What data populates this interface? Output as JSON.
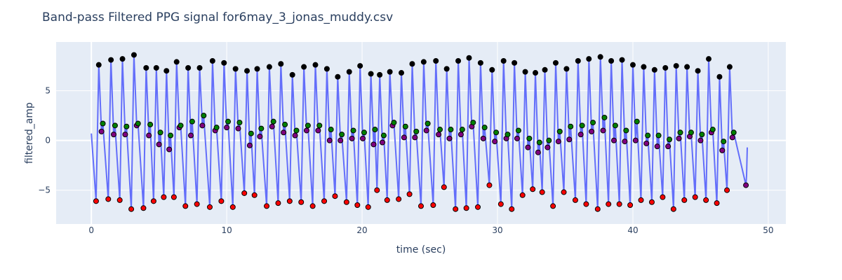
{
  "chart_data": {
    "type": "line",
    "title": "Band-pass Filtered PPG signal for6may_3_jonas_muddy.csv",
    "xlabel": "time (sec)",
    "ylabel": "filtered_amp",
    "xlim": [
      -2.6,
      51.3
    ],
    "ylim": [
      -8.4,
      9.9
    ],
    "x_ticks": [
      0,
      10,
      20,
      30,
      40,
      50
    ],
    "y_ticks": [
      -5,
      0,
      5
    ],
    "y_tick_labels": [
      "−5",
      "0",
      "5"
    ],
    "grid": true,
    "legend": "none",
    "line_color": "#636efa",
    "beats": [
      {
        "trough": [
          0.35,
          -6.1
        ],
        "peak": [
          0.55,
          7.6
        ],
        "notch": [
          0.75,
          0.9
        ],
        "diastolic": [
          0.85,
          1.7
        ]
      },
      {
        "trough": [
          1.25,
          -5.9
        ],
        "peak": [
          1.45,
          8.1
        ],
        "notch": [
          1.65,
          0.6
        ],
        "diastolic": [
          1.75,
          1.5
        ]
      },
      {
        "trough": [
          2.1,
          -6.0
        ],
        "peak": [
          2.3,
          8.2
        ],
        "notch": [
          2.5,
          0.6
        ],
        "diastolic": [
          2.6,
          1.4
        ]
      },
      {
        "trough": [
          2.95,
          -6.9
        ],
        "peak": [
          3.15,
          8.6
        ],
        "notch": [
          3.35,
          1.5
        ],
        "diastolic": [
          3.45,
          1.7
        ]
      },
      {
        "trough": [
          3.85,
          -6.8
        ],
        "peak": [
          4.05,
          7.3
        ],
        "notch": [
          4.25,
          0.5
        ],
        "diastolic": [
          4.35,
          1.6
        ]
      },
      {
        "trough": [
          4.6,
          -6.1
        ],
        "peak": [
          4.8,
          7.3
        ],
        "notch": [
          5.0,
          -0.4
        ],
        "diastolic": [
          5.1,
          0.8
        ]
      },
      {
        "trough": [
          5.35,
          -5.7
        ],
        "peak": [
          5.55,
          7.0
        ],
        "notch": [
          5.75,
          -0.9
        ],
        "diastolic": [
          5.85,
          0.5
        ]
      },
      {
        "trough": [
          6.1,
          -5.7
        ],
        "peak": [
          6.3,
          7.9
        ],
        "notch": [
          6.5,
          1.3
        ],
        "diastolic": [
          6.6,
          1.5
        ]
      },
      {
        "trough": [
          6.95,
          -6.6
        ],
        "peak": [
          7.15,
          7.3
        ],
        "notch": [
          7.35,
          0.5
        ],
        "diastolic": [
          7.45,
          1.9
        ]
      },
      {
        "trough": [
          7.8,
          -6.4
        ],
        "peak": [
          8.0,
          7.3
        ],
        "notch": [
          8.2,
          1.5
        ],
        "diastolic": [
          8.3,
          2.5
        ]
      },
      {
        "trough": [
          8.75,
          -6.7
        ],
        "peak": [
          8.95,
          8.0
        ],
        "notch": [
          9.15,
          1.0
        ],
        "diastolic": [
          9.25,
          1.3
        ]
      },
      {
        "trough": [
          9.6,
          -6.1
        ],
        "peak": [
          9.8,
          7.8
        ],
        "notch": [
          10.0,
          1.3
        ],
        "diastolic": [
          10.1,
          1.9
        ]
      },
      {
        "trough": [
          10.45,
          -6.7
        ],
        "peak": [
          10.65,
          7.2
        ],
        "notch": [
          10.85,
          1.2
        ],
        "diastolic": [
          10.95,
          1.8
        ]
      },
      {
        "trough": [
          11.3,
          -5.3
        ],
        "peak": [
          11.5,
          7.0
        ],
        "notch": [
          11.7,
          -0.5
        ],
        "diastolic": [
          11.8,
          0.7
        ]
      },
      {
        "trough": [
          12.05,
          -5.5
        ],
        "peak": [
          12.25,
          7.2
        ],
        "notch": [
          12.45,
          0.4
        ],
        "diastolic": [
          12.55,
          1.2
        ]
      },
      {
        "trough": [
          12.95,
          -6.6
        ],
        "peak": [
          13.15,
          7.4
        ],
        "notch": [
          13.35,
          1.4
        ],
        "diastolic": [
          13.45,
          1.9
        ]
      },
      {
        "trough": [
          13.8,
          -6.3
        ],
        "peak": [
          14.0,
          7.7
        ],
        "notch": [
          14.2,
          0.8
        ],
        "diastolic": [
          14.3,
          1.6
        ]
      },
      {
        "trough": [
          14.65,
          -6.1
        ],
        "peak": [
          14.85,
          6.6
        ],
        "notch": [
          15.05,
          0.5
        ],
        "diastolic": [
          15.15,
          1.0
        ]
      },
      {
        "trough": [
          15.5,
          -6.2
        ],
        "peak": [
          15.7,
          7.4
        ],
        "notch": [
          15.9,
          1.0
        ],
        "diastolic": [
          16.0,
          1.5
        ]
      },
      {
        "trough": [
          16.35,
          -6.6
        ],
        "peak": [
          16.55,
          7.6
        ],
        "notch": [
          16.75,
          1.0
        ],
        "diastolic": [
          16.85,
          1.5
        ]
      },
      {
        "trough": [
          17.2,
          -6.1
        ],
        "peak": [
          17.4,
          7.2
        ],
        "notch": [
          17.6,
          0.0
        ],
        "diastolic": [
          17.7,
          1.1
        ]
      },
      {
        "trough": [
          18.0,
          -5.6
        ],
        "peak": [
          18.2,
          6.4
        ],
        "notch": [
          18.4,
          0.0
        ],
        "diastolic": [
          18.5,
          0.6
        ]
      },
      {
        "trough": [
          18.85,
          -6.2
        ],
        "peak": [
          19.05,
          6.9
        ],
        "notch": [
          19.25,
          0.2
        ],
        "diastolic": [
          19.35,
          1.0
        ]
      },
      {
        "trough": [
          19.65,
          -6.5
        ],
        "peak": [
          19.85,
          7.5
        ],
        "notch": [
          20.05,
          0.2
        ],
        "diastolic": [
          20.15,
          0.8
        ]
      },
      {
        "trough": [
          20.45,
          -6.7
        ],
        "peak": [
          20.65,
          6.7
        ],
        "notch": [
          20.85,
          -0.4
        ],
        "diastolic": [
          20.95,
          1.1
        ]
      },
      {
        "trough": [
          21.1,
          -5.0
        ],
        "peak": [
          21.3,
          6.6
        ],
        "notch": [
          21.5,
          -0.2
        ],
        "diastolic": [
          21.6,
          0.5
        ]
      },
      {
        "trough": [
          21.85,
          -6.0
        ],
        "peak": [
          22.05,
          6.9
        ],
        "notch": [
          22.25,
          1.5
        ],
        "diastolic": [
          22.35,
          1.8
        ]
      },
      {
        "trough": [
          22.7,
          -5.9
        ],
        "peak": [
          22.9,
          6.8
        ],
        "notch": [
          23.1,
          0.3
        ],
        "diastolic": [
          23.2,
          1.4
        ]
      },
      {
        "trough": [
          23.5,
          -5.4
        ],
        "peak": [
          23.7,
          7.7
        ],
        "notch": [
          23.9,
          0.3
        ],
        "diastolic": [
          24.0,
          0.9
        ]
      },
      {
        "trough": [
          24.35,
          -6.6
        ],
        "peak": [
          24.55,
          7.9
        ],
        "notch": [
          24.75,
          1.0
        ],
        "diastolic": [
          24.85,
          1.7
        ]
      },
      {
        "trough": [
          25.25,
          -6.5
        ],
        "peak": [
          25.45,
          8.0
        ],
        "notch": [
          25.65,
          0.6
        ],
        "diastolic": [
          25.75,
          1.1
        ]
      },
      {
        "trough": [
          26.05,
          -4.7
        ],
        "peak": [
          26.25,
          7.2
        ],
        "notch": [
          26.45,
          0.2
        ],
        "diastolic": [
          26.55,
          1.1
        ]
      },
      {
        "trough": [
          26.9,
          -6.9
        ],
        "peak": [
          27.1,
          8.0
        ],
        "notch": [
          27.3,
          0.6
        ],
        "diastolic": [
          27.4,
          1.1
        ]
      },
      {
        "trough": [
          27.7,
          -6.8
        ],
        "peak": [
          27.9,
          8.3
        ],
        "notch": [
          28.1,
          1.4
        ],
        "diastolic": [
          28.2,
          1.8
        ]
      },
      {
        "trough": [
          28.55,
          -6.7
        ],
        "peak": [
          28.75,
          7.8
        ],
        "notch": [
          28.95,
          0.2
        ],
        "diastolic": [
          29.05,
          1.3
        ]
      },
      {
        "trough": [
          29.4,
          -4.5
        ],
        "peak": [
          29.6,
          7.1
        ],
        "notch": [
          29.8,
          -0.1
        ],
        "diastolic": [
          29.9,
          0.8
        ]
      },
      {
        "trough": [
          30.25,
          -6.4
        ],
        "peak": [
          30.45,
          8.0
        ],
        "notch": [
          30.65,
          0.2
        ],
        "diastolic": [
          30.75,
          0.6
        ]
      },
      {
        "trough": [
          31.05,
          -6.9
        ],
        "peak": [
          31.25,
          7.8
        ],
        "notch": [
          31.45,
          0.2
        ],
        "diastolic": [
          31.55,
          1.0
        ]
      },
      {
        "trough": [
          31.85,
          -5.5
        ],
        "peak": [
          32.05,
          6.9
        ],
        "notch": [
          32.25,
          -0.7
        ],
        "diastolic": [
          32.35,
          0.2
        ]
      },
      {
        "trough": [
          32.6,
          -4.9
        ],
        "peak": [
          32.8,
          6.8
        ],
        "notch": [
          33.0,
          -1.2
        ],
        "diastolic": [
          33.1,
          -0.2
        ]
      },
      {
        "trough": [
          33.3,
          -5.2
        ],
        "peak": [
          33.5,
          7.1
        ],
        "notch": [
          33.7,
          -0.7
        ],
        "diastolic": [
          33.8,
          0.0
        ]
      },
      {
        "trough": [
          34.1,
          -6.6
        ],
        "peak": [
          34.3,
          7.8
        ],
        "notch": [
          34.5,
          -0.1
        ],
        "diastolic": [
          34.6,
          0.9
        ]
      },
      {
        "trough": [
          34.9,
          -5.2
        ],
        "peak": [
          35.1,
          7.2
        ],
        "notch": [
          35.3,
          0.1
        ],
        "diastolic": [
          35.4,
          1.4
        ]
      },
      {
        "trough": [
          35.75,
          -6.0
        ],
        "peak": [
          35.95,
          8.0
        ],
        "notch": [
          36.15,
          0.6
        ],
        "diastolic": [
          36.25,
          1.5
        ]
      },
      {
        "trough": [
          36.55,
          -6.4
        ],
        "peak": [
          36.75,
          8.2
        ],
        "notch": [
          36.95,
          0.9
        ],
        "diastolic": [
          37.05,
          1.8
        ]
      },
      {
        "trough": [
          37.4,
          -6.9
        ],
        "peak": [
          37.6,
          8.4
        ],
        "notch": [
          37.8,
          1.0
        ],
        "diastolic": [
          37.9,
          2.3
        ]
      },
      {
        "trough": [
          38.2,
          -6.4
        ],
        "peak": [
          38.4,
          8.0
        ],
        "notch": [
          38.6,
          0.0
        ],
        "diastolic": [
          38.7,
          1.5
        ]
      },
      {
        "trough": [
          39.0,
          -6.4
        ],
        "peak": [
          39.2,
          8.1
        ],
        "notch": [
          39.4,
          -0.1
        ],
        "diastolic": [
          39.5,
          1.0
        ]
      },
      {
        "trough": [
          39.8,
          -6.5
        ],
        "peak": [
          40.0,
          7.6
        ],
        "notch": [
          40.2,
          0.0
        ],
        "diastolic": [
          40.3,
          1.9
        ]
      },
      {
        "trough": [
          40.6,
          -6.0
        ],
        "peak": [
          40.8,
          7.4
        ],
        "notch": [
          41.0,
          -0.3
        ],
        "diastolic": [
          41.1,
          0.5
        ]
      },
      {
        "trough": [
          41.4,
          -6.2
        ],
        "peak": [
          41.6,
          7.1
        ],
        "notch": [
          41.8,
          -0.6
        ],
        "diastolic": [
          41.9,
          0.5
        ]
      },
      {
        "trough": [
          42.2,
          -5.7
        ],
        "peak": [
          42.4,
          7.3
        ],
        "notch": [
          42.6,
          -0.6
        ],
        "diastolic": [
          42.7,
          0.1
        ]
      },
      {
        "trough": [
          43.0,
          -6.9
        ],
        "peak": [
          43.2,
          7.5
        ],
        "notch": [
          43.4,
          0.2
        ],
        "diastolic": [
          43.5,
          0.8
        ]
      },
      {
        "trough": [
          43.8,
          -6.0
        ],
        "peak": [
          44.0,
          7.4
        ],
        "notch": [
          44.2,
          0.4
        ],
        "diastolic": [
          44.3,
          0.8
        ]
      },
      {
        "trough": [
          44.6,
          -5.7
        ],
        "peak": [
          44.8,
          7.0
        ],
        "notch": [
          45.0,
          0.0
        ],
        "diastolic": [
          45.1,
          0.6
        ]
      },
      {
        "trough": [
          45.4,
          -6.0
        ],
        "peak": [
          45.6,
          8.2
        ],
        "notch": [
          45.8,
          0.8
        ],
        "diastolic": [
          45.9,
          1.1
        ]
      },
      {
        "trough": [
          46.2,
          -6.3
        ],
        "peak": [
          46.4,
          6.4
        ],
        "notch": [
          46.6,
          -1.0
        ],
        "diastolic": [
          46.7,
          -0.1
        ]
      },
      {
        "trough": [
          46.95,
          -5.0
        ],
        "peak": [
          47.15,
          7.4
        ],
        "notch": [
          47.35,
          0.3
        ],
        "diastolic": [
          47.45,
          0.8
        ]
      }
    ],
    "end_point": [
      48.35,
      -4.5
    ],
    "end_tail": [
      [
        48.4,
        -3.5
      ],
      [
        48.45,
        -0.7
      ]
    ],
    "start_point": [
      0.0,
      0.7
    ],
    "marker_colors": {
      "trough": "#ff0000",
      "peak": "#000000",
      "notch": "#800080",
      "diastolic": "#008000"
    }
  }
}
